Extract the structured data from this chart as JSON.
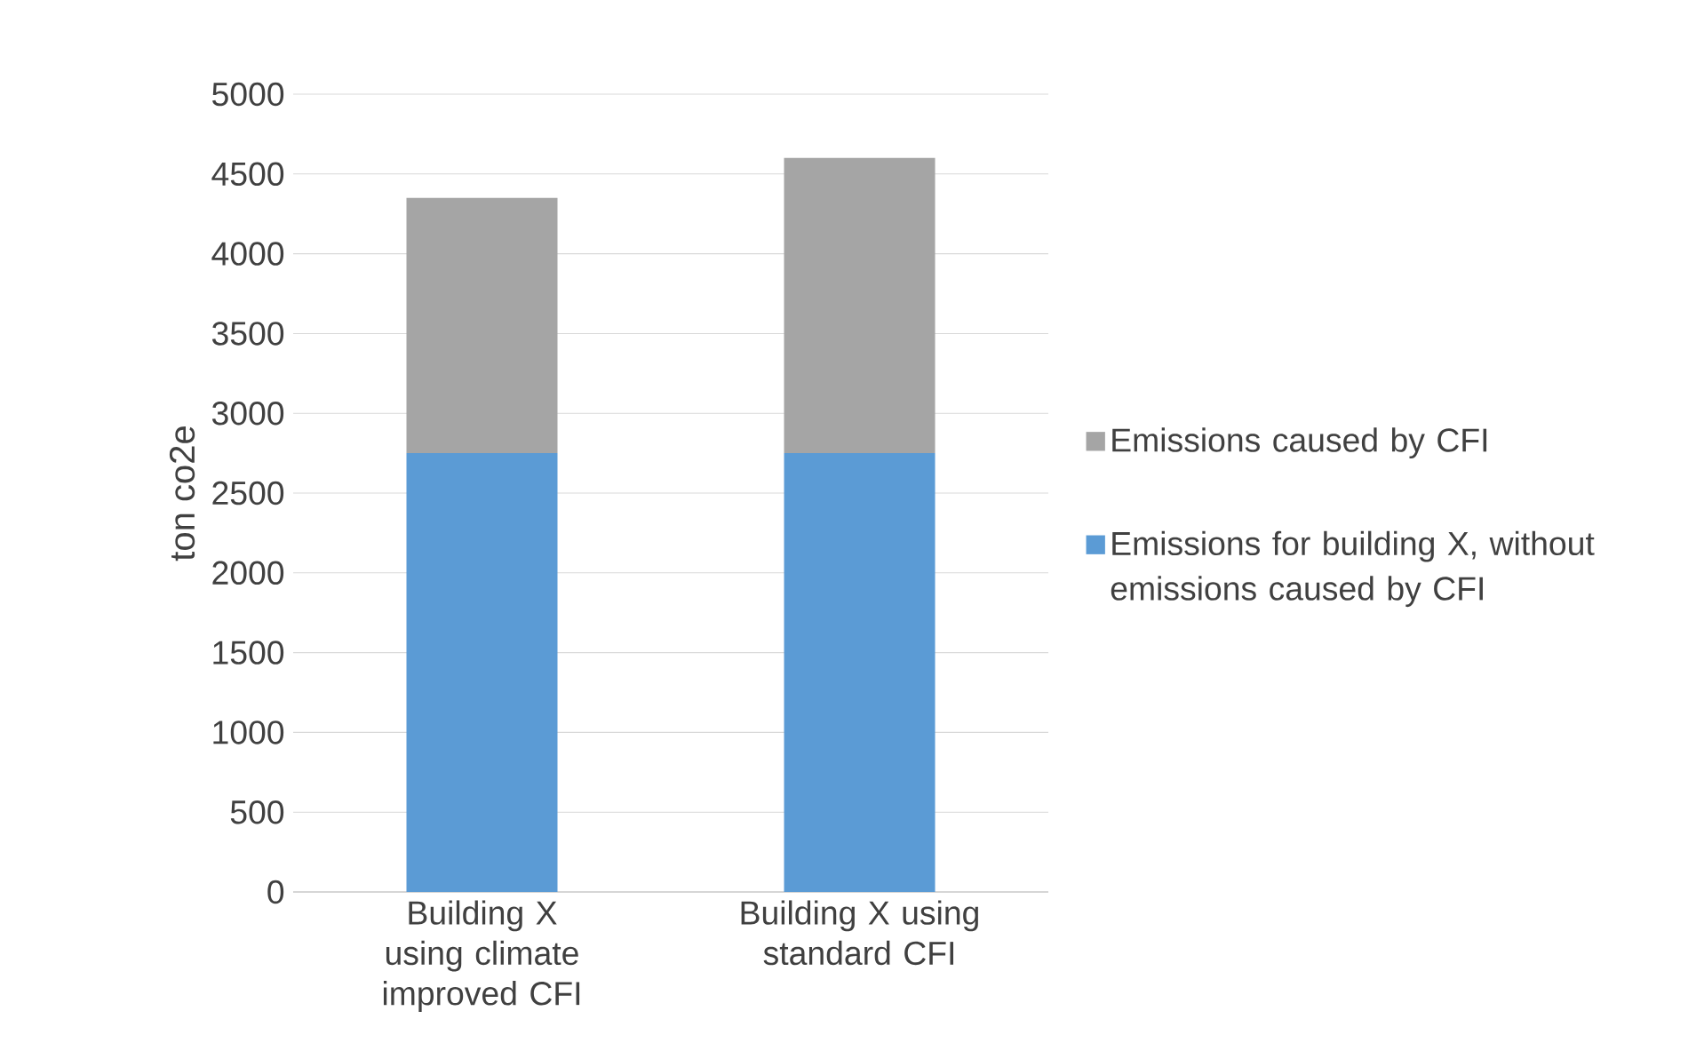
{
  "chart_data": {
    "type": "bar",
    "stacked": true,
    "ylabel": "ton co2e",
    "categories": [
      "Building X using climate improved CFI",
      "Building X using standard CFI"
    ],
    "series": [
      {
        "name": "Emissions for building X, without emissions caused by CFI",
        "color": "#5b9bd5",
        "values": [
          2750,
          2750
        ]
      },
      {
        "name": "Emissions caused by CFI",
        "color": "#a5a5a5",
        "values": [
          1600,
          1850
        ]
      }
    ],
    "ylim": [
      0,
      5000
    ],
    "yticks": [
      0,
      500,
      1000,
      1500,
      2000,
      2500,
      3000,
      3500,
      4000,
      4500,
      5000
    ],
    "grid": "y",
    "legend": "right"
  }
}
